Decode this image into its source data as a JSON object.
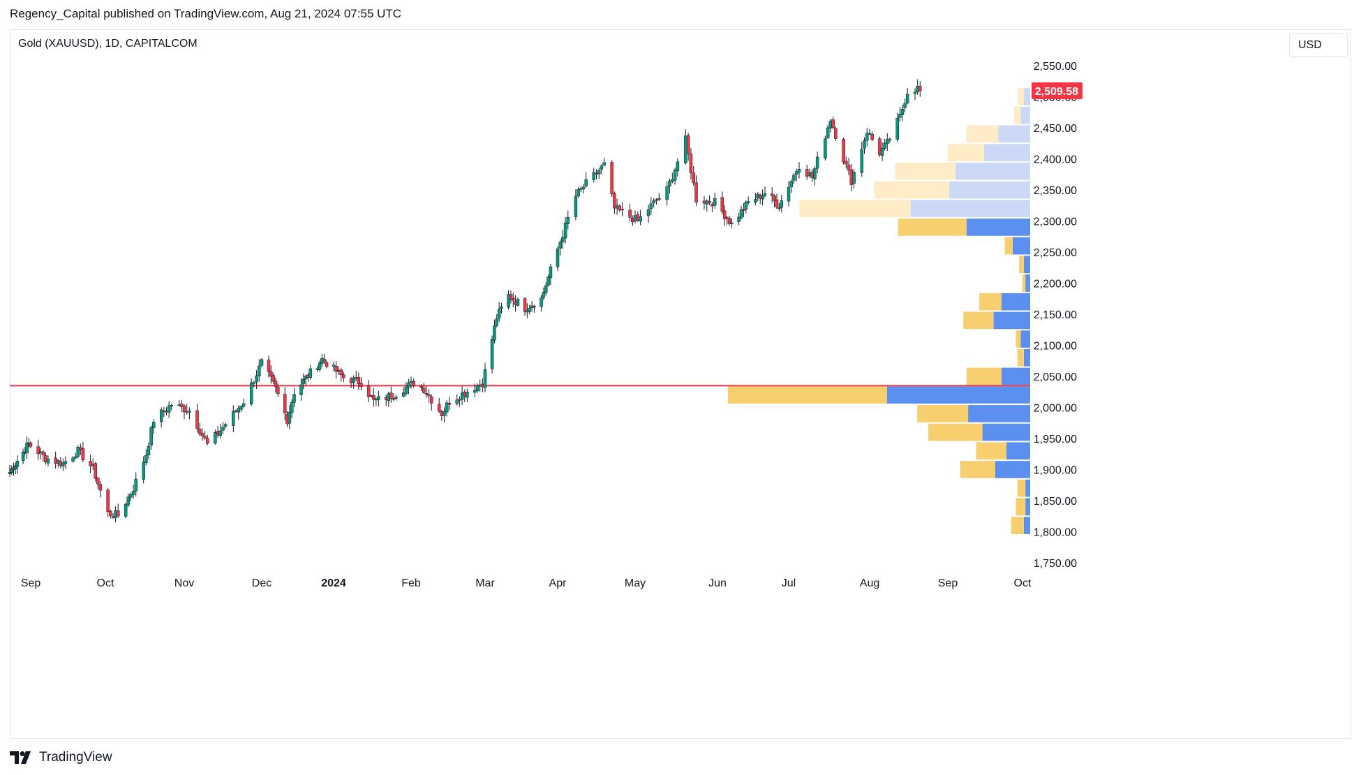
{
  "header": {
    "published_by": "Regency_Capital published on TradingView.com, Aug 21, 2024 07:55 UTC",
    "symbol": "Gold (XAUUSD), 1D, CAPITALCOM",
    "currency": "USD"
  },
  "footer": {
    "brand": "TradingView",
    "brand_icon": "tradingview-logo-icon"
  },
  "colors": {
    "up": "#089981",
    "down": "#f23645",
    "red_line": "#f23645",
    "vp_up": "#5b8ff0",
    "vp_down": "#f7cf6e",
    "vp_up_light": "#cbd9f7",
    "vp_down_light": "#fdecc6",
    "price_badge": "#f23645"
  },
  "chart_data": {
    "type": "candlestick",
    "ylim": [
      1730,
      2575
    ],
    "y_ticks": [
      "2,550.00",
      "2,500.00",
      "2,450.00",
      "2,400.00",
      "2,350.00",
      "2,300.00",
      "2,250.00",
      "2,200.00",
      "2,150.00",
      "2,100.00",
      "2,050.00",
      "2,000.00",
      "1,950.00",
      "1,900.00",
      "1,850.00",
      "1,800.00",
      "1,750.00"
    ],
    "x_ticks": [
      "Sep",
      "Oct",
      "Nov",
      "Dec",
      "2024",
      "Feb",
      "Mar",
      "Apr",
      "May",
      "Jun",
      "Jul",
      "Aug",
      "Sep",
      "Oct"
    ],
    "last_price": "2,509.58",
    "horizontal_line": 2035,
    "candle_waypoints": [
      {
        "date": "2023-08-21",
        "close": 1896
      },
      {
        "date": "2023-08-31",
        "close": 1942
      },
      {
        "date": "2023-09-07",
        "close": 1918
      },
      {
        "date": "2023-09-14",
        "close": 1910
      },
      {
        "date": "2023-09-20",
        "close": 1930
      },
      {
        "date": "2023-09-26",
        "close": 1902
      },
      {
        "date": "2023-10-02",
        "close": 1830
      },
      {
        "date": "2023-10-06",
        "close": 1826
      },
      {
        "date": "2023-10-12",
        "close": 1870
      },
      {
        "date": "2023-10-17",
        "close": 1925
      },
      {
        "date": "2023-10-20",
        "close": 1980
      },
      {
        "date": "2023-10-27",
        "close": 2005
      },
      {
        "date": "2023-11-03",
        "close": 1995
      },
      {
        "date": "2023-11-10",
        "close": 1940
      },
      {
        "date": "2023-11-14",
        "close": 1958
      },
      {
        "date": "2023-11-24",
        "close": 2010
      },
      {
        "date": "2023-12-01",
        "close": 2072
      },
      {
        "date": "2023-12-07",
        "close": 2030
      },
      {
        "date": "2023-12-12",
        "close": 1980
      },
      {
        "date": "2023-12-15",
        "close": 2025
      },
      {
        "date": "2023-12-27",
        "close": 2078
      },
      {
        "date": "2024-01-05",
        "close": 2048
      },
      {
        "date": "2024-01-12",
        "close": 2040
      },
      {
        "date": "2024-01-17",
        "close": 2010
      },
      {
        "date": "2024-01-25",
        "close": 2020
      },
      {
        "date": "2024-02-02",
        "close": 2040
      },
      {
        "date": "2024-02-06",
        "close": 2030
      },
      {
        "date": "2024-02-13",
        "close": 1990
      },
      {
        "date": "2024-02-16",
        "close": 2010
      },
      {
        "date": "2024-02-29",
        "close": 2040
      },
      {
        "date": "2024-03-06",
        "close": 2145
      },
      {
        "date": "2024-03-11",
        "close": 2180
      },
      {
        "date": "2024-03-18",
        "close": 2160
      },
      {
        "date": "2024-03-25",
        "close": 2175
      },
      {
        "date": "2024-04-01",
        "close": 2255
      },
      {
        "date": "2024-04-08",
        "close": 2340
      },
      {
        "date": "2024-04-12",
        "close": 2360
      },
      {
        "date": "2024-04-19",
        "close": 2390
      },
      {
        "date": "2024-04-23",
        "close": 2320
      },
      {
        "date": "2024-05-02",
        "close": 2300
      },
      {
        "date": "2024-05-06",
        "close": 2320
      },
      {
        "date": "2024-05-13",
        "close": 2350
      },
      {
        "date": "2024-05-20",
        "close": 2430
      },
      {
        "date": "2024-05-24",
        "close": 2335
      },
      {
        "date": "2024-05-31",
        "close": 2330
      },
      {
        "date": "2024-06-07",
        "close": 2295
      },
      {
        "date": "2024-06-14",
        "close": 2330
      },
      {
        "date": "2024-06-21",
        "close": 2345
      },
      {
        "date": "2024-06-27",
        "close": 2325
      },
      {
        "date": "2024-07-05",
        "close": 2390
      },
      {
        "date": "2024-07-10",
        "close": 2370
      },
      {
        "date": "2024-07-17",
        "close": 2465
      },
      {
        "date": "2024-07-22",
        "close": 2400
      },
      {
        "date": "2024-07-25",
        "close": 2365
      },
      {
        "date": "2024-07-31",
        "close": 2445
      },
      {
        "date": "2024-08-05",
        "close": 2410
      },
      {
        "date": "2024-08-08",
        "close": 2425
      },
      {
        "date": "2024-08-13",
        "close": 2468
      },
      {
        "date": "2024-08-16",
        "close": 2508
      },
      {
        "date": "2024-08-20",
        "close": 2514
      },
      {
        "date": "2024-08-21",
        "close": 2509.58
      }
    ],
    "volume_profile": {
      "bin_size": 30,
      "bins": [
        {
          "low": 1795,
          "up": 4,
          "down": 8
        },
        {
          "low": 1825,
          "up": 3,
          "down": 6
        },
        {
          "low": 1855,
          "up": 3,
          "down": 5
        },
        {
          "low": 1885,
          "up": 22,
          "down": 22
        },
        {
          "low": 1915,
          "up": 15,
          "down": 19
        },
        {
          "low": 1945,
          "up": 30,
          "down": 34
        },
        {
          "low": 1975,
          "up": 39,
          "down": 32
        },
        {
          "low": 2005,
          "up": 90,
          "down": 100
        },
        {
          "low": 2035,
          "up": 18,
          "down": 22
        },
        {
          "low": 2065,
          "up": 4,
          "down": 4
        },
        {
          "low": 2095,
          "up": 6,
          "down": 3
        },
        {
          "low": 2125,
          "up": 23,
          "down": 19
        },
        {
          "low": 2155,
          "up": 18,
          "down": 14
        },
        {
          "low": 2185,
          "up": 3,
          "down": 2
        },
        {
          "low": 2215,
          "up": 4,
          "down": 3
        },
        {
          "low": 2245,
          "up": 11,
          "down": 5
        },
        {
          "low": 2275,
          "up": 40,
          "down": 43
        },
        {
          "low": 2305,
          "up": 75,
          "down": 70
        },
        {
          "low": 2335,
          "up": 51,
          "down": 47
        },
        {
          "low": 2365,
          "up": 47,
          "down": 38
        },
        {
          "low": 2395,
          "up": 29,
          "down": 23
        },
        {
          "low": 2425,
          "up": 20,
          "down": 20
        },
        {
          "low": 2455,
          "up": 6,
          "down": 4
        },
        {
          "low": 2485,
          "up": 4,
          "down": 4
        }
      ]
    }
  }
}
